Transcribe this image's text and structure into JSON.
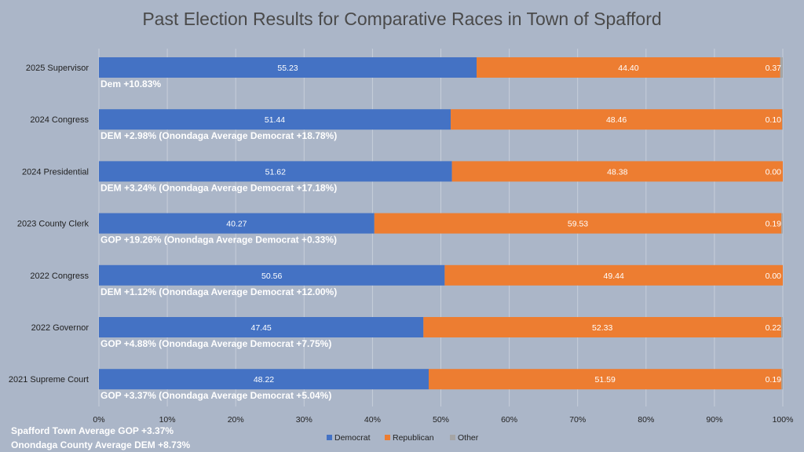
{
  "chart_data": {
    "type": "bar",
    "orientation": "horizontal",
    "stacked": "100%",
    "title": "Past Election Results for Comparative Races in Town of Spafford",
    "categories": [
      "2025 Supervisor",
      "2024 Congress",
      "2024 Presidential",
      "2023 County Clerk",
      "2022 Congress",
      "2022 Governor",
      "2021 Supreme Court"
    ],
    "series": [
      {
        "name": "Democrat",
        "color": "#4472c4",
        "values": [
          55.23,
          51.44,
          51.62,
          40.27,
          50.56,
          47.45,
          48.22
        ]
      },
      {
        "name": "Republican",
        "color": "#ed7d31",
        "values": [
          44.4,
          48.46,
          48.38,
          59.53,
          49.44,
          52.33,
          51.59
        ]
      },
      {
        "name": "Other",
        "color": "#a5a5a5",
        "values": [
          0.37,
          0.1,
          0.0,
          0.19,
          0.0,
          0.22,
          0.19
        ]
      }
    ],
    "value_labels": [
      [
        "55.23",
        "44.40",
        "0.37"
      ],
      [
        "51.44",
        "48.46",
        "0.10"
      ],
      [
        "51.62",
        "48.38",
        "0.00"
      ],
      [
        "40.27",
        "59.53",
        "0.19"
      ],
      [
        "50.56",
        "49.44",
        "0.00"
      ],
      [
        "47.45",
        "52.33",
        "0.22"
      ],
      [
        "48.22",
        "51.59",
        "0.19"
      ]
    ],
    "annotations": [
      "Dem +10.83%",
      "DEM +2.98% (Onondaga Average  Democrat +18.78%)",
      "DEM +3.24% (Onondaga Average Democrat +17.18%)",
      "GOP +19.26% (Onondaga Average Democrat +0.33%)",
      "DEM +1.12% (Onondaga Average Democrat +12.00%)",
      "GOP +4.88% (Onondaga Average Democrat +7.75%)",
      "GOP +3.37% (Onondaga Average Democrat +5.04%)"
    ],
    "x_ticks": [
      "0%",
      "10%",
      "20%",
      "30%",
      "40%",
      "50%",
      "60%",
      "70%",
      "80%",
      "90%",
      "100%"
    ],
    "xlim": [
      0,
      100
    ],
    "grid": true,
    "legend_position": "bottom"
  },
  "footnotes": [
    "Spafford Town Average GOP +3.37%",
    "Onondaga County Average DEM +8.73%"
  ]
}
